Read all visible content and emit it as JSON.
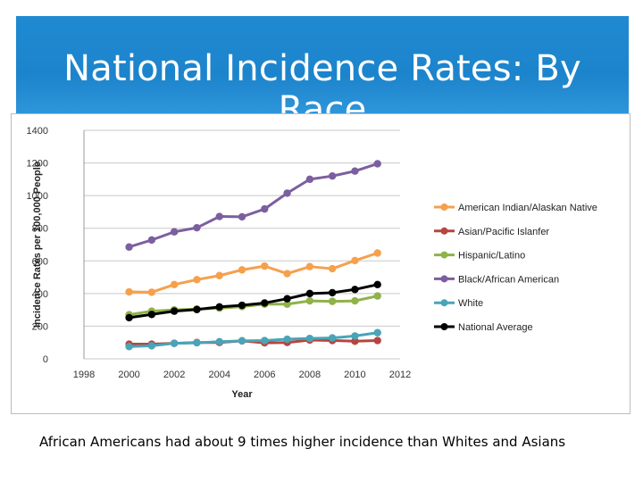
{
  "slide": {
    "title": "National Incidence Rates: By Race",
    "caption": "African Americans had about 9 times higher incidence than Whites and Asians"
  },
  "chart_data": {
    "type": "line",
    "title": "",
    "xlabel": "Year",
    "ylabel": "Incidence Rates per 100,000 People",
    "xlim": [
      1998,
      2012
    ],
    "ylim": [
      0,
      1400
    ],
    "xticks": [
      1998,
      2000,
      2002,
      2004,
      2006,
      2008,
      2010,
      2012
    ],
    "yticks": [
      0,
      200,
      400,
      600,
      800,
      1000,
      1200,
      1400
    ],
    "grid": "horizontal",
    "legend_position": "right",
    "x": [
      2000,
      2001,
      2002,
      2003,
      2004,
      2005,
      2006,
      2007,
      2008,
      2009,
      2010,
      2011
    ],
    "series": [
      {
        "name": "American Indian/Alaskan Native",
        "color": "#f5a04d",
        "values": [
          410,
          408,
          455,
          485,
          510,
          545,
          568,
          522,
          565,
          552,
          602,
          648
        ]
      },
      {
        "name": "Asian/Pacific Islanfer",
        "color": "#b5463f",
        "values": [
          90,
          90,
          95,
          100,
          100,
          110,
          98,
          100,
          115,
          112,
          108,
          112
        ]
      },
      {
        "name": "Hispanic/Latino",
        "color": "#8fb249",
        "values": [
          270,
          292,
          300,
          305,
          310,
          320,
          335,
          335,
          355,
          352,
          355,
          385
        ]
      },
      {
        "name": "Black/African American",
        "color": "#7b5fa0",
        "values": [
          685,
          728,
          778,
          803,
          872,
          870,
          918,
          1015,
          1100,
          1120,
          1150,
          1195
        ]
      },
      {
        "name": "White",
        "color": "#4aa4b8",
        "values": [
          75,
          80,
          95,
          98,
          105,
          110,
          112,
          120,
          125,
          128,
          140,
          160
        ]
      },
      {
        "name": "National Average",
        "color": "#000000",
        "values": [
          252,
          272,
          292,
          302,
          318,
          328,
          342,
          368,
          400,
          405,
          425,
          455
        ]
      }
    ]
  }
}
